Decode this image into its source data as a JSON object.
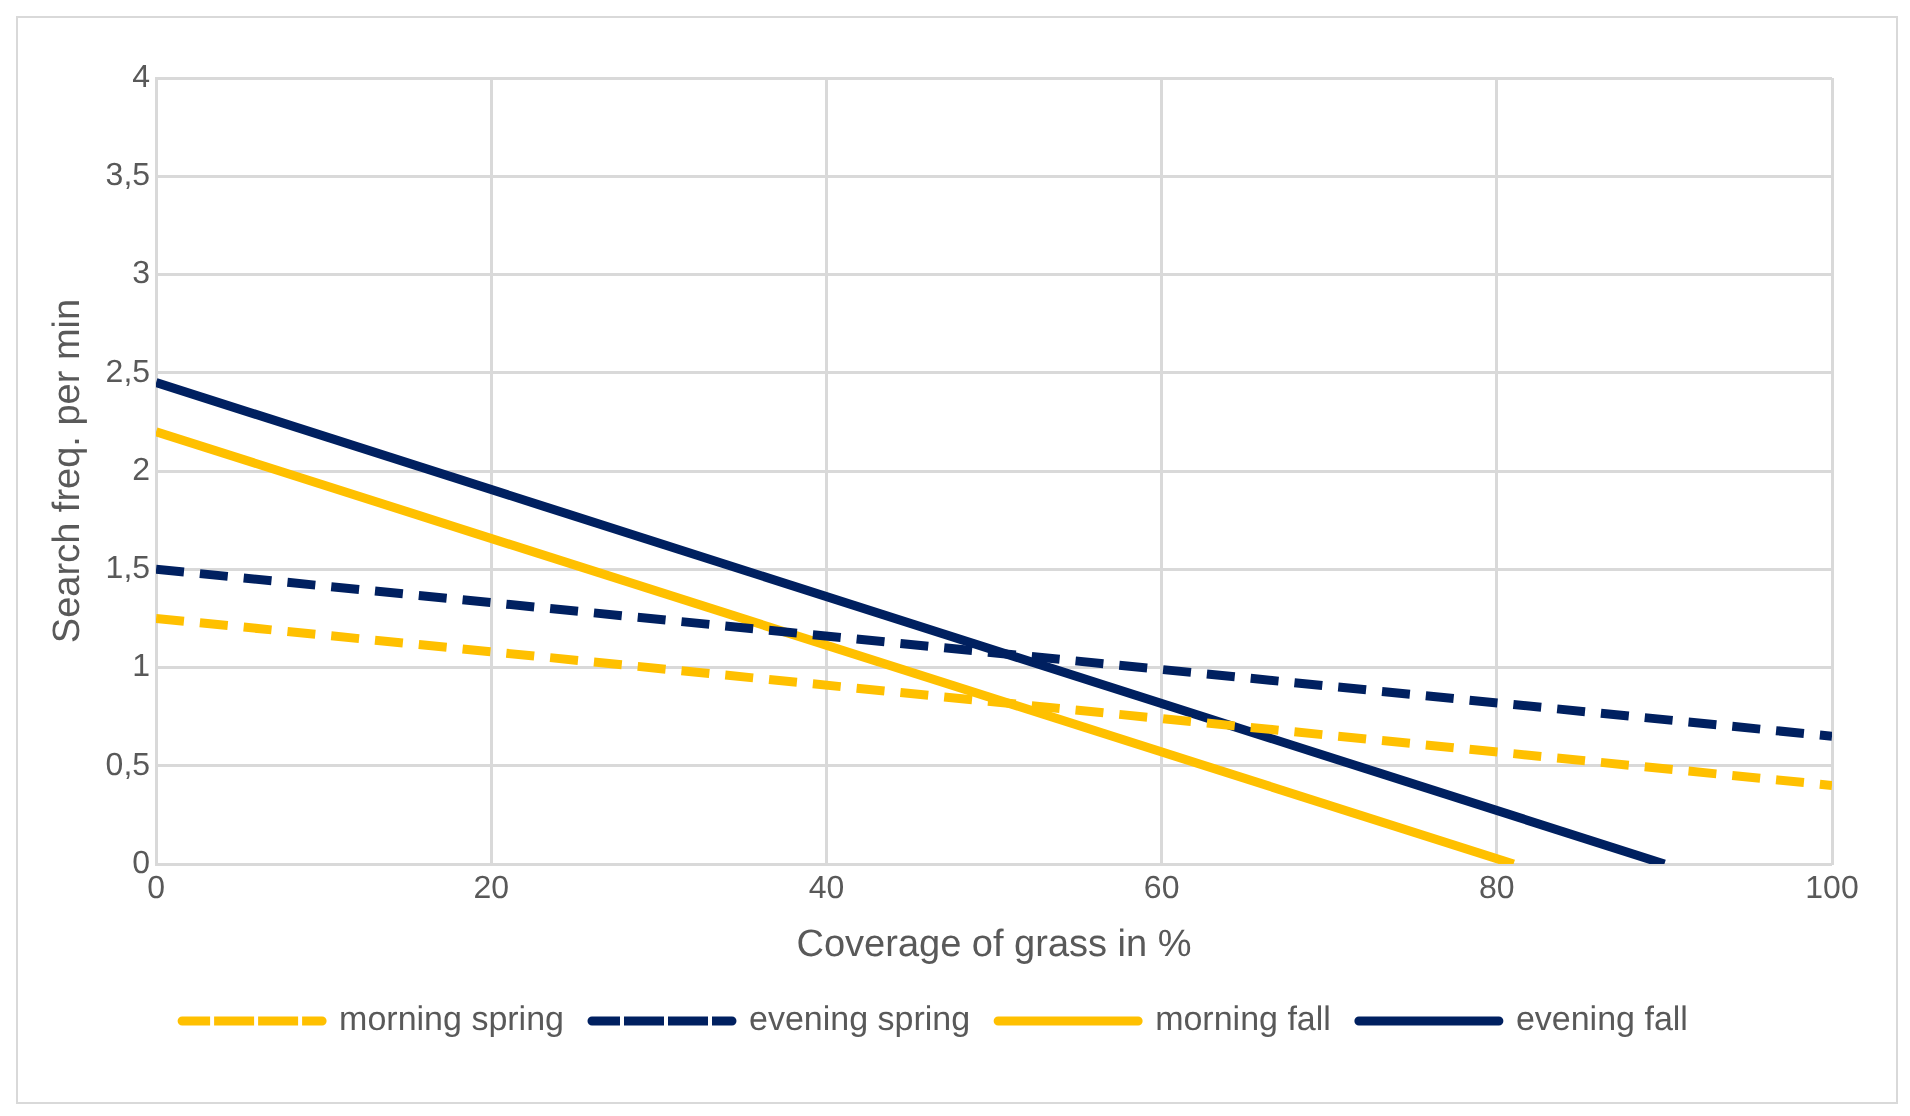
{
  "chart_data": {
    "type": "line",
    "xlabel": "Coverage of grass in %",
    "ylabel": "Search freq. per min",
    "xlim": [
      0,
      100
    ],
    "xticks": [
      0,
      20,
      40,
      60,
      80,
      100
    ],
    "ylim": [
      0,
      4
    ],
    "yticks": [
      0,
      {
        "value": 0.5,
        "label": "0,5"
      },
      1,
      {
        "value": 1.5,
        "label": "1,5"
      },
      2,
      {
        "value": 2.5,
        "label": "2,5"
      },
      3,
      {
        "value": 3.5,
        "label": "3,5"
      },
      4
    ],
    "grid": true,
    "legend": "bottom",
    "marker": "none",
    "series": [
      {
        "name": "morning spring",
        "color": "#ffc000",
        "line_style": "dashed",
        "x": [
          0,
          100
        ],
        "values": [
          1.25,
          0.4
        ]
      },
      {
        "name": "evening spring",
        "color": "#002060",
        "line_style": "dashed",
        "x": [
          0,
          100
        ],
        "values": [
          1.5,
          0.65
        ]
      },
      {
        "name": "morning fall",
        "color": "#ffc000",
        "line_style": "solid",
        "x": [
          0,
          81
        ],
        "values": [
          2.2,
          0
        ]
      },
      {
        "name": "evening fall",
        "color": "#002060",
        "line_style": "solid",
        "x": [
          0,
          90
        ],
        "values": [
          2.45,
          0
        ]
      }
    ]
  }
}
